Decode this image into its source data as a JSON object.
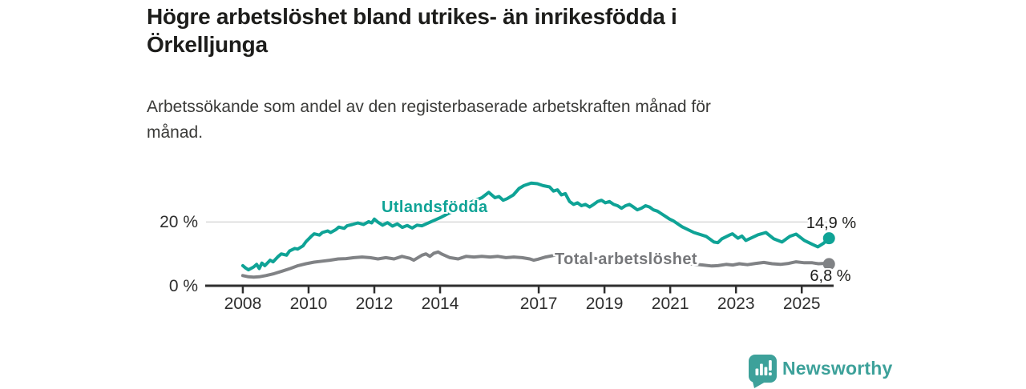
{
  "header": {
    "title_lines": [
      "Högre arbetslöshet bland utrikes- än inrikesfödda i",
      "Örkelljunga"
    ],
    "subtitle": "Arbetssökande som andel av den registerbaserade arbetskraften månad för månad."
  },
  "chart_data": {
    "type": "line",
    "unit": "%",
    "xlim": [
      2006.88,
      2025.97
    ],
    "ylim": [
      0,
      36.9
    ],
    "grid_on": true,
    "grid_values": [
      20
    ],
    "grid_color": "#d9d9d9",
    "axis_color": "#2e2e2e",
    "x_ticks": [
      {
        "label": "2008",
        "x": 2008
      },
      {
        "label": "2010",
        "x": 2010
      },
      {
        "label": "2012",
        "x": 2012
      },
      {
        "label": "2014",
        "x": 2014
      },
      {
        "label": "2017",
        "x": 2017
      },
      {
        "label": "2019",
        "x": 2019
      },
      {
        "label": "2021",
        "x": 2021
      },
      {
        "label": "2023",
        "x": 2023
      },
      {
        "label": "2025",
        "x": 2025
      }
    ],
    "y_ticks": [
      {
        "label": "0 %",
        "value": 0
      },
      {
        "label": "20 %",
        "value": 20
      }
    ],
    "series": [
      {
        "name": "Utlandsfödda",
        "color": "#0fa396",
        "end_label": "14,9 %",
        "end_value": 14.9,
        "points": [
          [
            2008.0,
            6.3
          ],
          [
            2008.08,
            5.6
          ],
          [
            2008.17,
            5.0
          ],
          [
            2008.33,
            5.9
          ],
          [
            2008.42,
            6.7
          ],
          [
            2008.5,
            5.4
          ],
          [
            2008.58,
            7.1
          ],
          [
            2008.67,
            6.3
          ],
          [
            2008.83,
            8.0
          ],
          [
            2008.92,
            7.5
          ],
          [
            2009.08,
            9.2
          ],
          [
            2009.17,
            10.0
          ],
          [
            2009.33,
            9.6
          ],
          [
            2009.42,
            10.9
          ],
          [
            2009.58,
            11.7
          ],
          [
            2009.67,
            11.5
          ],
          [
            2009.83,
            12.5
          ],
          [
            2009.92,
            13.8
          ],
          [
            2010.08,
            15.5
          ],
          [
            2010.17,
            16.3
          ],
          [
            2010.33,
            15.9
          ],
          [
            2010.42,
            16.7
          ],
          [
            2010.58,
            17.2
          ],
          [
            2010.67,
            16.7
          ],
          [
            2010.83,
            17.6
          ],
          [
            2010.92,
            18.4
          ],
          [
            2011.08,
            18.0
          ],
          [
            2011.17,
            18.8
          ],
          [
            2011.33,
            19.2
          ],
          [
            2011.5,
            19.7
          ],
          [
            2011.67,
            19.2
          ],
          [
            2011.83,
            20.1
          ],
          [
            2011.92,
            19.7
          ],
          [
            2012.0,
            20.9
          ],
          [
            2012.1,
            20.0
          ],
          [
            2012.25,
            19.0
          ],
          [
            2012.4,
            19.8
          ],
          [
            2012.55,
            18.7
          ],
          [
            2012.7,
            19.4
          ],
          [
            2012.85,
            18.3
          ],
          [
            2013.0,
            18.9
          ],
          [
            2013.15,
            18.1
          ],
          [
            2013.3,
            19.0
          ],
          [
            2013.45,
            18.8
          ],
          [
            2013.6,
            19.5
          ],
          [
            2013.8,
            20.4
          ],
          [
            2014.0,
            21.3
          ],
          [
            2014.2,
            22.4
          ],
          [
            2014.4,
            23.4
          ],
          [
            2014.6,
            24.5
          ],
          [
            2014.8,
            25.5
          ],
          [
            2015.0,
            26.5
          ],
          [
            2015.15,
            27.1
          ],
          [
            2015.27,
            27.6
          ],
          [
            2015.48,
            29.3
          ],
          [
            2015.67,
            27.6
          ],
          [
            2015.79,
            28.0
          ],
          [
            2015.92,
            26.8
          ],
          [
            2016.04,
            27.3
          ],
          [
            2016.23,
            28.5
          ],
          [
            2016.4,
            30.5
          ],
          [
            2016.55,
            31.4
          ],
          [
            2016.77,
            32.2
          ],
          [
            2016.96,
            32.0
          ],
          [
            2017.13,
            31.4
          ],
          [
            2017.33,
            31.0
          ],
          [
            2017.45,
            29.7
          ],
          [
            2017.57,
            30.1
          ],
          [
            2017.69,
            28.5
          ],
          [
            2017.81,
            28.9
          ],
          [
            2017.94,
            26.4
          ],
          [
            2018.06,
            25.5
          ],
          [
            2018.18,
            26.0
          ],
          [
            2018.3,
            25.1
          ],
          [
            2018.42,
            25.5
          ],
          [
            2018.55,
            24.7
          ],
          [
            2018.67,
            25.5
          ],
          [
            2018.79,
            26.4
          ],
          [
            2018.91,
            26.8
          ],
          [
            2019.03,
            26.0
          ],
          [
            2019.15,
            26.4
          ],
          [
            2019.28,
            25.5
          ],
          [
            2019.4,
            25.1
          ],
          [
            2019.52,
            24.3
          ],
          [
            2019.64,
            25.1
          ],
          [
            2019.76,
            25.5
          ],
          [
            2019.88,
            24.7
          ],
          [
            2020.0,
            23.8
          ],
          [
            2020.12,
            24.3
          ],
          [
            2020.25,
            25.1
          ],
          [
            2020.37,
            24.7
          ],
          [
            2020.49,
            23.8
          ],
          [
            2020.61,
            23.4
          ],
          [
            2020.73,
            22.6
          ],
          [
            2020.85,
            21.8
          ],
          [
            2020.98,
            20.9
          ],
          [
            2021.1,
            20.3
          ],
          [
            2021.36,
            18.5
          ],
          [
            2021.72,
            16.7
          ],
          [
            2022.09,
            15.5
          ],
          [
            2022.33,
            13.7
          ],
          [
            2022.45,
            13.5
          ],
          [
            2022.57,
            14.7
          ],
          [
            2022.82,
            16.0
          ],
          [
            2022.89,
            16.3
          ],
          [
            2023.06,
            14.9
          ],
          [
            2023.18,
            15.6
          ],
          [
            2023.3,
            14.2
          ],
          [
            2023.67,
            16.0
          ],
          [
            2023.91,
            16.7
          ],
          [
            2024.15,
            14.7
          ],
          [
            2024.4,
            13.7
          ],
          [
            2024.64,
            15.5
          ],
          [
            2024.83,
            16.2
          ],
          [
            2025.08,
            14.2
          ],
          [
            2025.32,
            13.0
          ],
          [
            2025.49,
            12.2
          ],
          [
            2025.66,
            13.3
          ],
          [
            2025.83,
            14.9
          ]
        ]
      },
      {
        "name": "Total arbetslöshet",
        "color": "#808285",
        "end_label": "6,8 %",
        "end_value": 6.8,
        "points": [
          [
            2008.0,
            3.2
          ],
          [
            2008.17,
            2.8
          ],
          [
            2008.33,
            2.7
          ],
          [
            2008.5,
            2.8
          ],
          [
            2008.7,
            3.2
          ],
          [
            2008.95,
            3.8
          ],
          [
            2009.2,
            4.6
          ],
          [
            2009.44,
            5.4
          ],
          [
            2009.68,
            6.3
          ],
          [
            2009.92,
            6.9
          ],
          [
            2010.17,
            7.4
          ],
          [
            2010.41,
            7.7
          ],
          [
            2010.65,
            8.0
          ],
          [
            2010.9,
            8.4
          ],
          [
            2011.14,
            8.5
          ],
          [
            2011.38,
            8.8
          ],
          [
            2011.63,
            9.0
          ],
          [
            2011.87,
            8.8
          ],
          [
            2012.11,
            8.4
          ],
          [
            2012.35,
            8.8
          ],
          [
            2012.6,
            8.4
          ],
          [
            2012.84,
            9.2
          ],
          [
            2013.08,
            8.6
          ],
          [
            2013.2,
            8.0
          ],
          [
            2013.45,
            9.6
          ],
          [
            2013.57,
            10.0
          ],
          [
            2013.69,
            9.2
          ],
          [
            2013.81,
            10.2
          ],
          [
            2013.94,
            10.6
          ],
          [
            2014.06,
            9.9
          ],
          [
            2014.3,
            8.8
          ],
          [
            2014.55,
            8.4
          ],
          [
            2014.79,
            9.2
          ],
          [
            2015.03,
            9.0
          ],
          [
            2015.27,
            9.2
          ],
          [
            2015.52,
            9.0
          ],
          [
            2015.76,
            9.2
          ],
          [
            2016.0,
            8.8
          ],
          [
            2016.24,
            9.0
          ],
          [
            2016.49,
            8.8
          ],
          [
            2016.73,
            8.4
          ],
          [
            2016.85,
            8.0
          ],
          [
            2016.97,
            8.3
          ],
          [
            2017.21,
            9.0
          ],
          [
            2017.45,
            9.5
          ],
          [
            2017.57,
            9.8
          ],
          [
            2017.7,
            9.5
          ],
          [
            2017.94,
            9.2
          ],
          [
            2018.18,
            8.8
          ],
          [
            2018.31,
            8.4
          ],
          [
            2018.43,
            8.6
          ],
          [
            2018.67,
            8.6
          ],
          [
            2019.0,
            8.3
          ],
          [
            2019.5,
            7.9
          ],
          [
            2020.0,
            7.7
          ],
          [
            2020.5,
            7.8
          ],
          [
            2021.0,
            7.4
          ],
          [
            2021.5,
            7.0
          ],
          [
            2022.0,
            6.5
          ],
          [
            2022.26,
            6.2
          ],
          [
            2022.45,
            6.3
          ],
          [
            2022.7,
            6.7
          ],
          [
            2022.9,
            6.5
          ],
          [
            2023.1,
            6.9
          ],
          [
            2023.35,
            6.6
          ],
          [
            2023.6,
            7.0
          ],
          [
            2023.85,
            7.3
          ],
          [
            2024.1,
            6.9
          ],
          [
            2024.35,
            6.7
          ],
          [
            2024.6,
            7.0
          ],
          [
            2024.83,
            7.5
          ],
          [
            2025.08,
            7.2
          ],
          [
            2025.32,
            7.2
          ],
          [
            2025.51,
            6.9
          ],
          [
            2025.68,
            7.0
          ],
          [
            2025.83,
            6.8
          ]
        ]
      }
    ]
  },
  "footer": {
    "brand": "Newsworthy",
    "logo_icon": "bar-chart-speech-bubble-icon",
    "brand_color": "#3da19a"
  }
}
